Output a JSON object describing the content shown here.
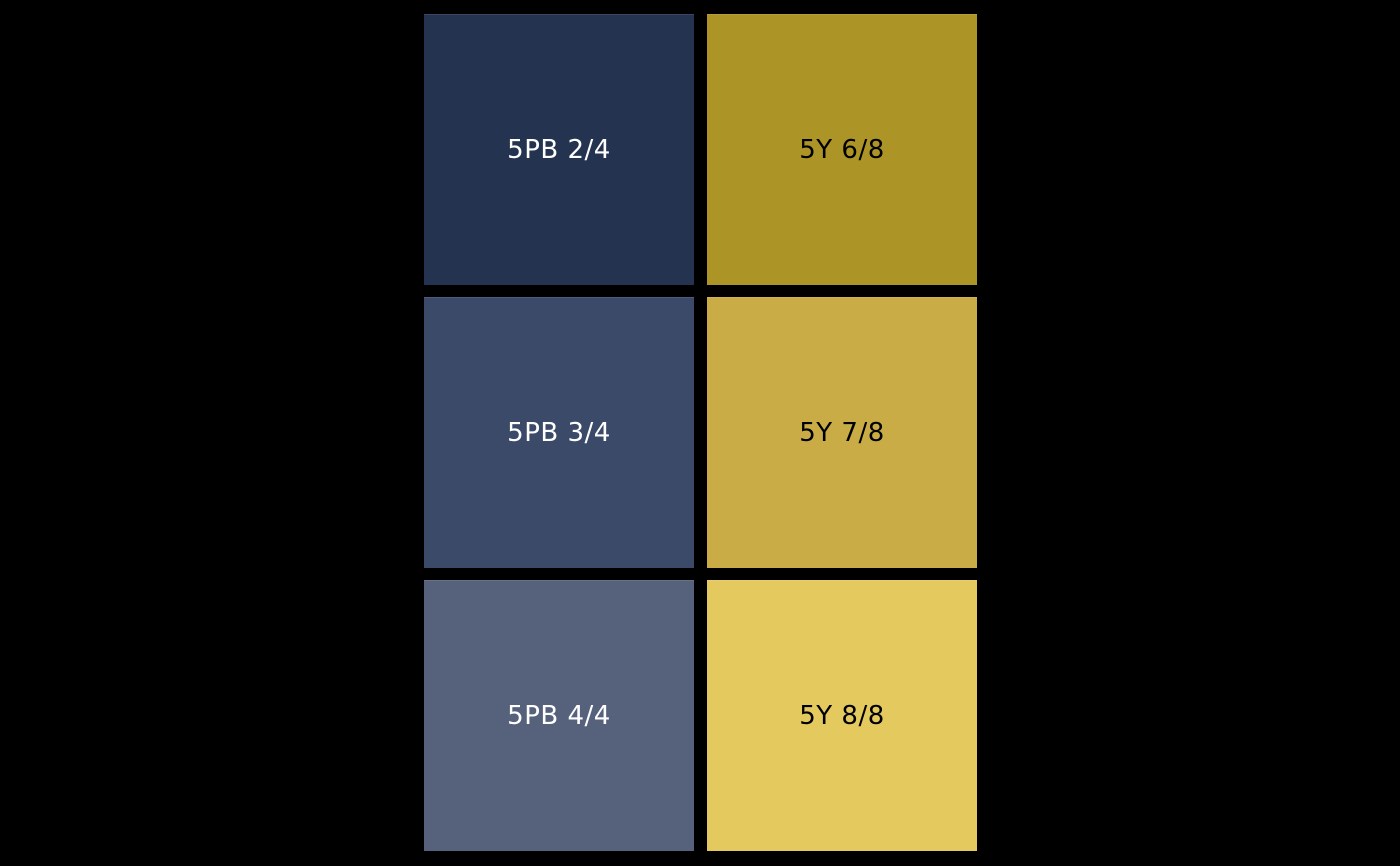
{
  "figure": {
    "background": "#000000"
  },
  "chart_data": {
    "type": "table",
    "title": "",
    "rows": 3,
    "cols": 2,
    "layout": "2-column by 3-row grid of labeled color patches on black background, legend off, axes off",
    "cells": [
      [
        {
          "label": "5PB 2/4",
          "color": "#233350"
        },
        {
          "label": "5Y 6/8",
          "color": "#AC9426"
        }
      ],
      [
        {
          "label": "5PB 3/4",
          "color": "#3B4A68"
        },
        {
          "label": "5Y 7/8",
          "color": "#C9AC45"
        }
      ],
      [
        {
          "label": "5PB 4/4",
          "color": "#56627C"
        },
        {
          "label": "5Y 8/8",
          "color": "#E4C95F"
        }
      ]
    ]
  },
  "swatches": [
    {
      "label": "5PB 2/4",
      "color": "#233350",
      "text_color": "#FFFFFF"
    },
    {
      "label": "5Y 6/8",
      "color": "#AC9426",
      "text_color": "#000000"
    },
    {
      "label": "5PB 3/4",
      "color": "#3B4A68",
      "text_color": "#FFFFFF"
    },
    {
      "label": "5Y 7/8",
      "color": "#C9AC45",
      "text_color": "#000000"
    },
    {
      "label": "5PB 4/4",
      "color": "#56627C",
      "text_color": "#FFFFFF"
    },
    {
      "label": "5Y 8/8",
      "color": "#E4C95F",
      "text_color": "#000000"
    }
  ]
}
